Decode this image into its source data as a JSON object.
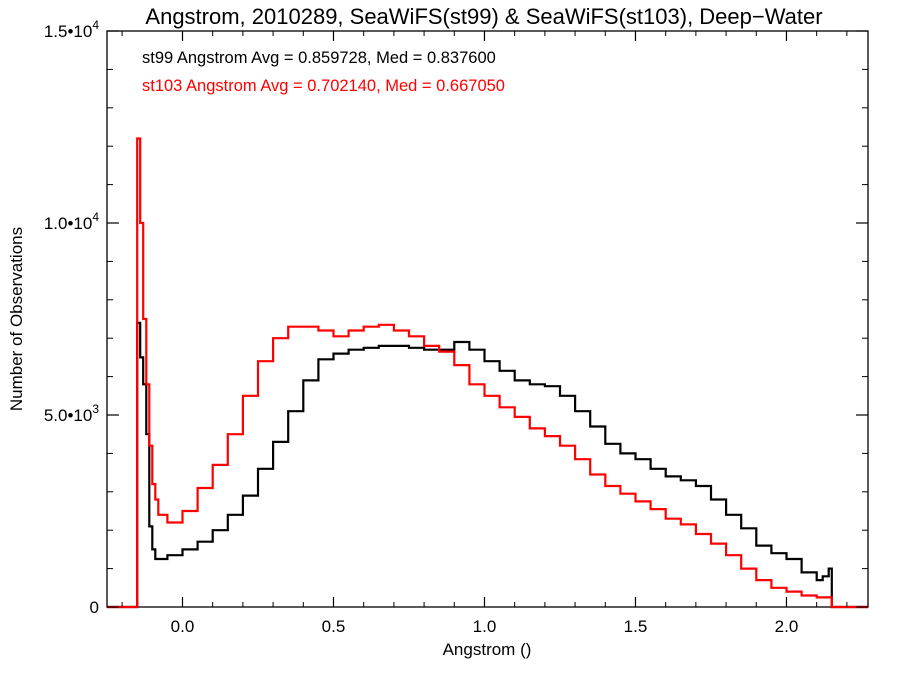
{
  "chart_data": {
    "type": "line",
    "step": true,
    "title": "Angstrom, 2010289, SeaWiFS(st99) & SeaWiFS(st103), Deep−Water",
    "xlabel": "Angstrom ()",
    "ylabel": "Number of Observations",
    "xlim": [
      -0.25,
      2.27
    ],
    "ylim": [
      0,
      15000
    ],
    "grid": false,
    "x_ticks": [
      {
        "value": 0.0,
        "label": "0.0"
      },
      {
        "value": 0.5,
        "label": "0.5"
      },
      {
        "value": 1.0,
        "label": "1.0"
      },
      {
        "value": 1.5,
        "label": "1.5"
      },
      {
        "value": 2.0,
        "label": "2.0"
      }
    ],
    "y_ticks": [
      {
        "value": 0,
        "mantissa": "0",
        "exponent": ""
      },
      {
        "value": 5000,
        "mantissa": "5.0•10",
        "exponent": "3"
      },
      {
        "value": 10000,
        "mantissa": "1.0•10",
        "exponent": "4"
      },
      {
        "value": 15000,
        "mantissa": "1.5•10",
        "exponent": "4"
      }
    ],
    "annotations": [
      {
        "text": "st99 Angstrom Avg = 0.859728, Med = 0.837600",
        "color": "#000000"
      },
      {
        "text": "st103 Angstrom Avg = 0.702140, Med = 0.667050",
        "color": "#ff0000"
      }
    ],
    "series": [
      {
        "color": "#000000",
        "x": [
          -0.25,
          -0.15,
          -0.14,
          -0.13,
          -0.12,
          -0.11,
          -0.1,
          -0.09,
          -0.08,
          -0.05,
          0.0,
          0.05,
          0.1,
          0.15,
          0.2,
          0.25,
          0.3,
          0.35,
          0.4,
          0.45,
          0.5,
          0.55,
          0.6,
          0.65,
          0.7,
          0.75,
          0.8,
          0.85,
          0.9,
          0.95,
          1.0,
          1.05,
          1.1,
          1.15,
          1.2,
          1.25,
          1.3,
          1.35,
          1.4,
          1.45,
          1.5,
          1.55,
          1.6,
          1.65,
          1.7,
          1.75,
          1.8,
          1.85,
          1.9,
          1.95,
          2.0,
          2.05,
          2.1,
          2.12,
          2.14,
          2.15,
          2.27
        ],
        "y": [
          0,
          7400,
          6500,
          5800,
          4500,
          2100,
          1500,
          1250,
          1250,
          1350,
          1500,
          1700,
          2000,
          2400,
          2900,
          3600,
          4300,
          5100,
          5900,
          6450,
          6600,
          6700,
          6750,
          6800,
          6800,
          6750,
          6700,
          6700,
          6900,
          6700,
          6400,
          6150,
          5900,
          5800,
          5750,
          5500,
          5100,
          4700,
          4250,
          4000,
          3850,
          3600,
          3400,
          3300,
          3150,
          2800,
          2400,
          2050,
          1600,
          1400,
          1250,
          900,
          700,
          800,
          1000,
          0,
          0
        ]
      },
      {
        "color": "#ff0000",
        "x": [
          -0.25,
          -0.15,
          -0.14,
          -0.13,
          -0.12,
          -0.11,
          -0.1,
          -0.09,
          -0.08,
          -0.05,
          0.0,
          0.05,
          0.1,
          0.15,
          0.2,
          0.25,
          0.3,
          0.35,
          0.4,
          0.45,
          0.5,
          0.55,
          0.6,
          0.65,
          0.7,
          0.75,
          0.8,
          0.85,
          0.9,
          0.95,
          1.0,
          1.05,
          1.1,
          1.15,
          1.2,
          1.25,
          1.3,
          1.35,
          1.4,
          1.45,
          1.5,
          1.55,
          1.6,
          1.65,
          1.7,
          1.75,
          1.8,
          1.85,
          1.9,
          1.95,
          2.0,
          2.05,
          2.1,
          2.14,
          2.15,
          2.27
        ],
        "y": [
          0,
          12200,
          10000,
          7500,
          5800,
          4200,
          3200,
          2800,
          2400,
          2200,
          2500,
          3100,
          3700,
          4500,
          5500,
          6400,
          7000,
          7300,
          7300,
          7200,
          7050,
          7200,
          7300,
          7350,
          7200,
          7050,
          6800,
          6650,
          6300,
          5800,
          5500,
          5200,
          4950,
          4650,
          4450,
          4200,
          3850,
          3450,
          3150,
          2950,
          2750,
          2550,
          2300,
          2150,
          1900,
          1650,
          1350,
          1000,
          700,
          500,
          400,
          300,
          250,
          250,
          0,
          0
        ]
      }
    ]
  }
}
